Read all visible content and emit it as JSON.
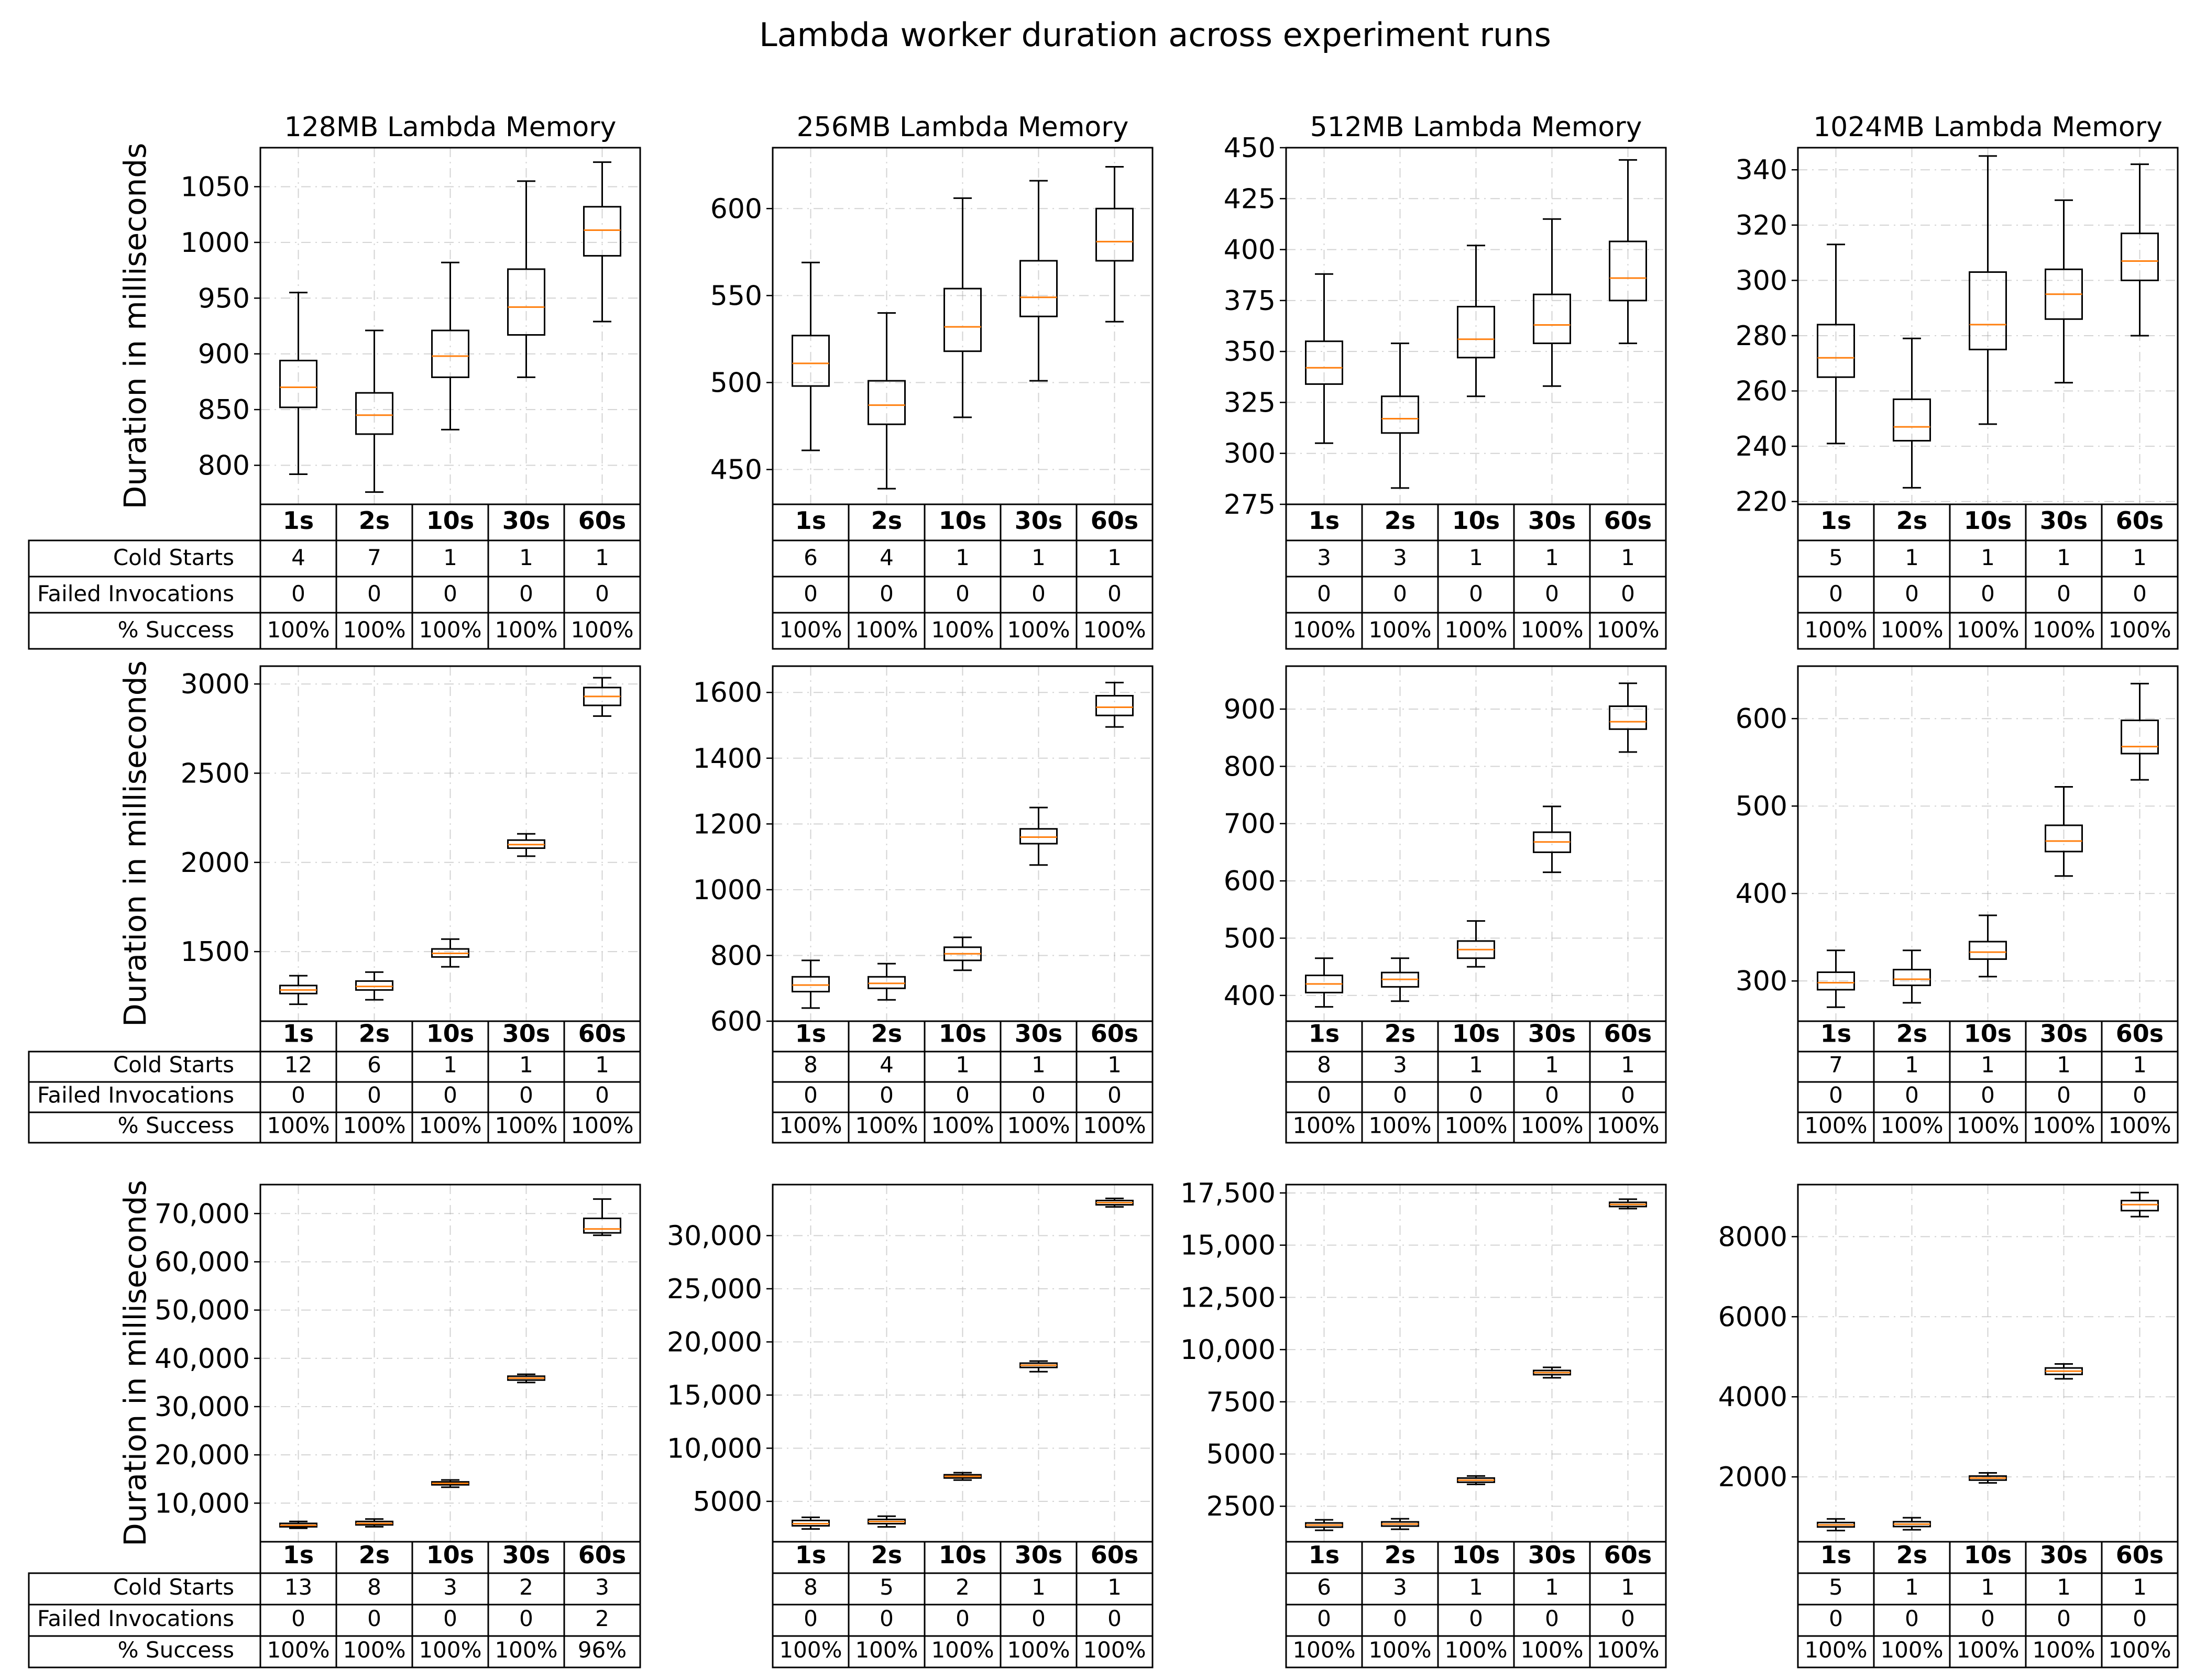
{
  "title": "Lambda worker duration across experiment runs",
  "ylabel": "Duration in milliseconds",
  "row_labels": [
    "Cold Starts",
    "Failed Invocations",
    "% Success"
  ],
  "colors": {
    "median": "#ff7f0e",
    "box": "#000000",
    "grid": "#b0b0b0"
  },
  "chart_data": [
    {
      "type": "boxplot",
      "title": "128MB Lambda Memory",
      "categories": [
        "1s",
        "2s",
        "10s",
        "30s",
        "60s"
      ],
      "ylim": [
        765,
        1085
      ],
      "yticks": [
        800,
        850,
        900,
        950,
        1000,
        1050
      ],
      "tick_labels": [
        "800",
        "850",
        "900",
        "950",
        "1000",
        "1050"
      ],
      "boxes": [
        {
          "whislo": 792,
          "q1": 852,
          "med": 870,
          "q3": 894,
          "whishi": 955
        },
        {
          "whislo": 776,
          "q1": 828,
          "med": 845,
          "q3": 865,
          "whishi": 921
        },
        {
          "whislo": 832,
          "q1": 879,
          "med": 898,
          "q3": 921,
          "whishi": 982
        },
        {
          "whislo": 879,
          "q1": 917,
          "med": 942,
          "q3": 976,
          "whishi": 1055
        },
        {
          "whislo": 929,
          "q1": 988,
          "med": 1011,
          "q3": 1032,
          "whishi": 1072
        }
      ],
      "table": {
        "cold_starts": [
          "4",
          "7",
          "1",
          "1",
          "1"
        ],
        "failed_invocations": [
          "0",
          "0",
          "0",
          "0",
          "0"
        ],
        "success": [
          "100%",
          "100%",
          "100%",
          "100%",
          "100%"
        ]
      }
    },
    {
      "type": "boxplot",
      "title": "256MB Lambda Memory",
      "categories": [
        "1s",
        "2s",
        "10s",
        "30s",
        "60s"
      ],
      "ylim": [
        430,
        635
      ],
      "yticks": [
        450,
        500,
        550,
        600
      ],
      "tick_labels": [
        "450",
        "500",
        "550",
        "600"
      ],
      "boxes": [
        {
          "whislo": 461,
          "q1": 498,
          "med": 511,
          "q3": 527,
          "whishi": 569
        },
        {
          "whislo": 439,
          "q1": 476,
          "med": 487,
          "q3": 501,
          "whishi": 540
        },
        {
          "whislo": 480,
          "q1": 518,
          "med": 532,
          "q3": 554,
          "whishi": 606
        },
        {
          "whislo": 501,
          "q1": 538,
          "med": 549,
          "q3": 570,
          "whishi": 616
        },
        {
          "whislo": 535,
          "q1": 570,
          "med": 581,
          "q3": 600,
          "whishi": 624
        }
      ],
      "table": {
        "cold_starts": [
          "6",
          "4",
          "1",
          "1",
          "1"
        ],
        "failed_invocations": [
          "0",
          "0",
          "0",
          "0",
          "0"
        ],
        "success": [
          "100%",
          "100%",
          "100%",
          "100%",
          "100%"
        ]
      }
    },
    {
      "type": "boxplot",
      "title": "512MB Lambda Memory",
      "categories": [
        "1s",
        "2s",
        "10s",
        "30s",
        "60s"
      ],
      "ylim": [
        275,
        450
      ],
      "yticks": [
        275,
        300,
        325,
        350,
        375,
        400,
        425,
        450
      ],
      "tick_labels": [
        "275",
        "300",
        "325",
        "350",
        "375",
        "400",
        "425",
        "450"
      ],
      "boxes": [
        {
          "whislo": 305,
          "q1": 334,
          "med": 342,
          "q3": 355,
          "whishi": 388
        },
        {
          "whislo": 283,
          "q1": 310,
          "med": 317,
          "q3": 328,
          "whishi": 354
        },
        {
          "whislo": 328,
          "q1": 347,
          "med": 356,
          "q3": 372,
          "whishi": 402
        },
        {
          "whislo": 333,
          "q1": 354,
          "med": 363,
          "q3": 378,
          "whishi": 415
        },
        {
          "whislo": 354,
          "q1": 375,
          "med": 386,
          "q3": 404,
          "whishi": 444
        }
      ],
      "table": {
        "cold_starts": [
          "3",
          "3",
          "1",
          "1",
          "1"
        ],
        "failed_invocations": [
          "0",
          "0",
          "0",
          "0",
          "0"
        ],
        "success": [
          "100%",
          "100%",
          "100%",
          "100%",
          "100%"
        ]
      }
    },
    {
      "type": "boxplot",
      "title": "1024MB Lambda Memory",
      "categories": [
        "1s",
        "2s",
        "10s",
        "30s",
        "60s"
      ],
      "ylim": [
        219,
        348
      ],
      "yticks": [
        220,
        240,
        260,
        280,
        300,
        320,
        340
      ],
      "tick_labels": [
        "220",
        "240",
        "260",
        "280",
        "300",
        "320",
        "340"
      ],
      "boxes": [
        {
          "whislo": 241,
          "q1": 265,
          "med": 272,
          "q3": 284,
          "whishi": 313
        },
        {
          "whislo": 225,
          "q1": 242,
          "med": 247,
          "q3": 257,
          "whishi": 279
        },
        {
          "whislo": 248,
          "q1": 275,
          "med": 284,
          "q3": 303,
          "whishi": 345
        },
        {
          "whislo": 263,
          "q1": 286,
          "med": 295,
          "q3": 304,
          "whishi": 329
        },
        {
          "whislo": 280,
          "q1": 300,
          "med": 307,
          "q3": 317,
          "whishi": 342
        }
      ],
      "table": {
        "cold_starts": [
          "5",
          "1",
          "1",
          "1",
          "1"
        ],
        "failed_invocations": [
          "0",
          "0",
          "0",
          "0",
          "0"
        ],
        "success": [
          "100%",
          "100%",
          "100%",
          "100%",
          "100%"
        ]
      }
    },
    {
      "type": "boxplot",
      "title": "",
      "categories": [
        "1s",
        "2s",
        "10s",
        "30s",
        "60s"
      ],
      "ylim": [
        1110,
        3100
      ],
      "yticks": [
        1500,
        2000,
        2500,
        3000
      ],
      "tick_labels": [
        "1500",
        "2000",
        "2500",
        "3000"
      ],
      "boxes": [
        {
          "whislo": 1205,
          "q1": 1265,
          "med": 1285,
          "q3": 1310,
          "whishi": 1365
        },
        {
          "whislo": 1230,
          "q1": 1285,
          "med": 1305,
          "q3": 1335,
          "whishi": 1385
        },
        {
          "whislo": 1415,
          "q1": 1470,
          "med": 1490,
          "q3": 1515,
          "whishi": 1570
        },
        {
          "whislo": 2035,
          "q1": 2080,
          "med": 2100,
          "q3": 2125,
          "whishi": 2160
        },
        {
          "whislo": 2820,
          "q1": 2880,
          "med": 2930,
          "q3": 2980,
          "whishi": 3035
        }
      ],
      "table": {
        "cold_starts": [
          "12",
          "6",
          "1",
          "1",
          "1"
        ],
        "failed_invocations": [
          "0",
          "0",
          "0",
          "0",
          "0"
        ],
        "success": [
          "100%",
          "100%",
          "100%",
          "100%",
          "100%"
        ]
      }
    },
    {
      "type": "boxplot",
      "title": "",
      "categories": [
        "1s",
        "2s",
        "10s",
        "30s",
        "60s"
      ],
      "ylim": [
        600,
        1680
      ],
      "yticks": [
        600,
        800,
        1000,
        1200,
        1400,
        1600
      ],
      "tick_labels": [
        "600",
        "800",
        "1000",
        "1200",
        "1400",
        "1600"
      ],
      "boxes": [
        {
          "whislo": 640,
          "q1": 690,
          "med": 710,
          "q3": 735,
          "whishi": 785
        },
        {
          "whislo": 665,
          "q1": 700,
          "med": 715,
          "q3": 735,
          "whishi": 775
        },
        {
          "whislo": 755,
          "q1": 785,
          "med": 805,
          "q3": 825,
          "whishi": 855
        },
        {
          "whislo": 1075,
          "q1": 1140,
          "med": 1160,
          "q3": 1185,
          "whishi": 1250
        },
        {
          "whislo": 1495,
          "q1": 1530,
          "med": 1555,
          "q3": 1590,
          "whishi": 1630
        }
      ],
      "table": {
        "cold_starts": [
          "8",
          "4",
          "1",
          "1",
          "1"
        ],
        "failed_invocations": [
          "0",
          "0",
          "0",
          "0",
          "0"
        ],
        "success": [
          "100%",
          "100%",
          "100%",
          "100%",
          "100%"
        ]
      }
    },
    {
      "type": "boxplot",
      "title": "",
      "categories": [
        "1s",
        "2s",
        "10s",
        "30s",
        "60s"
      ],
      "ylim": [
        355,
        975
      ],
      "yticks": [
        400,
        500,
        600,
        700,
        800,
        900
      ],
      "tick_labels": [
        "400",
        "500",
        "600",
        "700",
        "800",
        "900"
      ],
      "boxes": [
        {
          "whislo": 380,
          "q1": 405,
          "med": 420,
          "q3": 435,
          "whishi": 465
        },
        {
          "whislo": 390,
          "q1": 415,
          "med": 428,
          "q3": 440,
          "whishi": 465
        },
        {
          "whislo": 450,
          "q1": 465,
          "med": 480,
          "q3": 495,
          "whishi": 530
        },
        {
          "whislo": 615,
          "q1": 650,
          "med": 668,
          "q3": 685,
          "whishi": 730
        },
        {
          "whislo": 825,
          "q1": 865,
          "med": 878,
          "q3": 905,
          "whishi": 945
        }
      ],
      "table": {
        "cold_starts": [
          "8",
          "3",
          "1",
          "1",
          "1"
        ],
        "failed_invocations": [
          "0",
          "0",
          "0",
          "0",
          "0"
        ],
        "success": [
          "100%",
          "100%",
          "100%",
          "100%",
          "100%"
        ]
      }
    },
    {
      "type": "boxplot",
      "title": "",
      "categories": [
        "1s",
        "2s",
        "10s",
        "30s",
        "60s"
      ],
      "ylim": [
        254,
        660
      ],
      "yticks": [
        300,
        400,
        500,
        600
      ],
      "tick_labels": [
        "300",
        "400",
        "500",
        "600"
      ],
      "boxes": [
        {
          "whislo": 270,
          "q1": 290,
          "med": 298,
          "q3": 310,
          "whishi": 335
        },
        {
          "whislo": 275,
          "q1": 295,
          "med": 302,
          "q3": 313,
          "whishi": 335
        },
        {
          "whislo": 305,
          "q1": 325,
          "med": 333,
          "q3": 345,
          "whishi": 375
        },
        {
          "whislo": 420,
          "q1": 448,
          "med": 460,
          "q3": 478,
          "whishi": 522
        },
        {
          "whislo": 530,
          "q1": 560,
          "med": 568,
          "q3": 598,
          "whishi": 640
        }
      ],
      "table": {
        "cold_starts": [
          "7",
          "1",
          "1",
          "1",
          "1"
        ],
        "failed_invocations": [
          "0",
          "0",
          "0",
          "0",
          "0"
        ],
        "success": [
          "100%",
          "100%",
          "100%",
          "100%",
          "100%"
        ]
      }
    },
    {
      "type": "boxplot",
      "title": "",
      "categories": [
        "1s",
        "2s",
        "10s",
        "30s",
        "60s"
      ],
      "ylim": [
        2000,
        76000
      ],
      "yticks": [
        10000,
        20000,
        30000,
        40000,
        50000,
        60000,
        70000
      ],
      "tick_labels": [
        "10,000",
        "20,000",
        "30,000",
        "40,000",
        "50,000",
        "60,000",
        "70,000"
      ],
      "boxes": [
        {
          "whislo": 4800,
          "q1": 5100,
          "med": 5400,
          "q3": 5800,
          "whishi": 6200
        },
        {
          "whislo": 5100,
          "q1": 5500,
          "med": 5800,
          "q3": 6200,
          "whishi": 6700
        },
        {
          "whislo": 13300,
          "q1": 13800,
          "med": 14100,
          "q3": 14400,
          "whishi": 14800
        },
        {
          "whislo": 35000,
          "q1": 35500,
          "med": 35900,
          "q3": 36300,
          "whishi": 36700
        },
        {
          "whislo": 65500,
          "q1": 66000,
          "med": 66800,
          "q3": 69000,
          "whishi": 73000
        }
      ],
      "table": {
        "cold_starts": [
          "13",
          "8",
          "3",
          "2",
          "3"
        ],
        "failed_invocations": [
          "0",
          "0",
          "0",
          "0",
          "2"
        ],
        "success": [
          "100%",
          "100%",
          "100%",
          "100%",
          "96%"
        ]
      }
    },
    {
      "type": "boxplot",
      "title": "",
      "categories": [
        "1s",
        "2s",
        "10s",
        "30s",
        "60s"
      ],
      "ylim": [
        1200,
        34800
      ],
      "yticks": [
        5000,
        10000,
        15000,
        20000,
        25000,
        30000
      ],
      "tick_labels": [
        "5000",
        "10,000",
        "15,000",
        "20,000",
        "25,000",
        "30,000"
      ],
      "boxes": [
        {
          "whislo": 2400,
          "q1": 2700,
          "med": 2900,
          "q3": 3200,
          "whishi": 3500
        },
        {
          "whislo": 2600,
          "q1": 2900,
          "med": 3100,
          "q3": 3300,
          "whishi": 3600
        },
        {
          "whislo": 7000,
          "q1": 7200,
          "med": 7350,
          "q3": 7500,
          "whishi": 7700
        },
        {
          "whislo": 17200,
          "q1": 17600,
          "med": 17800,
          "q3": 18000,
          "whishi": 18200
        },
        {
          "whislo": 32700,
          "q1": 32900,
          "med": 33100,
          "q3": 33300,
          "whishi": 33500
        }
      ],
      "table": {
        "cold_starts": [
          "8",
          "5",
          "2",
          "1",
          "1"
        ],
        "failed_invocations": [
          "0",
          "0",
          "0",
          "0",
          "0"
        ],
        "success": [
          "100%",
          "100%",
          "100%",
          "100%",
          "100%"
        ]
      }
    },
    {
      "type": "boxplot",
      "title": "",
      "categories": [
        "1s",
        "2s",
        "10s",
        "30s",
        "60s"
      ],
      "ylim": [
        800,
        17900
      ],
      "yticks": [
        2500,
        5000,
        7500,
        10000,
        12500,
        15000,
        17500
      ],
      "tick_labels": [
        "2500",
        "5000",
        "7500",
        "10,000",
        "12,500",
        "15,000",
        "17,500"
      ],
      "boxes": [
        {
          "whislo": 1350,
          "q1": 1500,
          "med": 1600,
          "q3": 1700,
          "whishi": 1850
        },
        {
          "whislo": 1400,
          "q1": 1550,
          "med": 1650,
          "q3": 1750,
          "whishi": 1900
        },
        {
          "whislo": 3550,
          "q1": 3650,
          "med": 3750,
          "q3": 3850,
          "whishi": 3950
        },
        {
          "whislo": 8650,
          "q1": 8800,
          "med": 8900,
          "q3": 9000,
          "whishi": 9150
        },
        {
          "whislo": 16750,
          "q1": 16850,
          "med": 16950,
          "q3": 17050,
          "whishi": 17200
        }
      ],
      "table": {
        "cold_starts": [
          "6",
          "3",
          "1",
          "1",
          "1"
        ],
        "failed_invocations": [
          "0",
          "0",
          "0",
          "0",
          "0"
        ],
        "success": [
          "100%",
          "100%",
          "100%",
          "100%",
          "100%"
        ]
      }
    },
    {
      "type": "boxplot",
      "title": "",
      "categories": [
        "1s",
        "2s",
        "10s",
        "30s",
        "60s"
      ],
      "ylim": [
        380,
        9300
      ],
      "yticks": [
        2000,
        4000,
        6000,
        8000
      ],
      "tick_labels": [
        "2000",
        "4000",
        "6000",
        "8000"
      ],
      "boxes": [
        {
          "whislo": 660,
          "q1": 750,
          "med": 800,
          "q3": 860,
          "whishi": 950
        },
        {
          "whislo": 680,
          "q1": 760,
          "med": 820,
          "q3": 880,
          "whishi": 980
        },
        {
          "whislo": 1850,
          "q1": 1920,
          "med": 1970,
          "q3": 2020,
          "whishi": 2100
        },
        {
          "whislo": 4450,
          "q1": 4560,
          "med": 4640,
          "q3": 4720,
          "whishi": 4820
        },
        {
          "whislo": 8500,
          "q1": 8650,
          "med": 8800,
          "q3": 8900,
          "whishi": 9100
        }
      ],
      "table": {
        "cold_starts": [
          "5",
          "1",
          "1",
          "1",
          "1"
        ],
        "failed_invocations": [
          "0",
          "0",
          "0",
          "0",
          "0"
        ],
        "success": [
          "100%",
          "100%",
          "100%",
          "100%",
          "100%"
        ]
      }
    }
  ]
}
